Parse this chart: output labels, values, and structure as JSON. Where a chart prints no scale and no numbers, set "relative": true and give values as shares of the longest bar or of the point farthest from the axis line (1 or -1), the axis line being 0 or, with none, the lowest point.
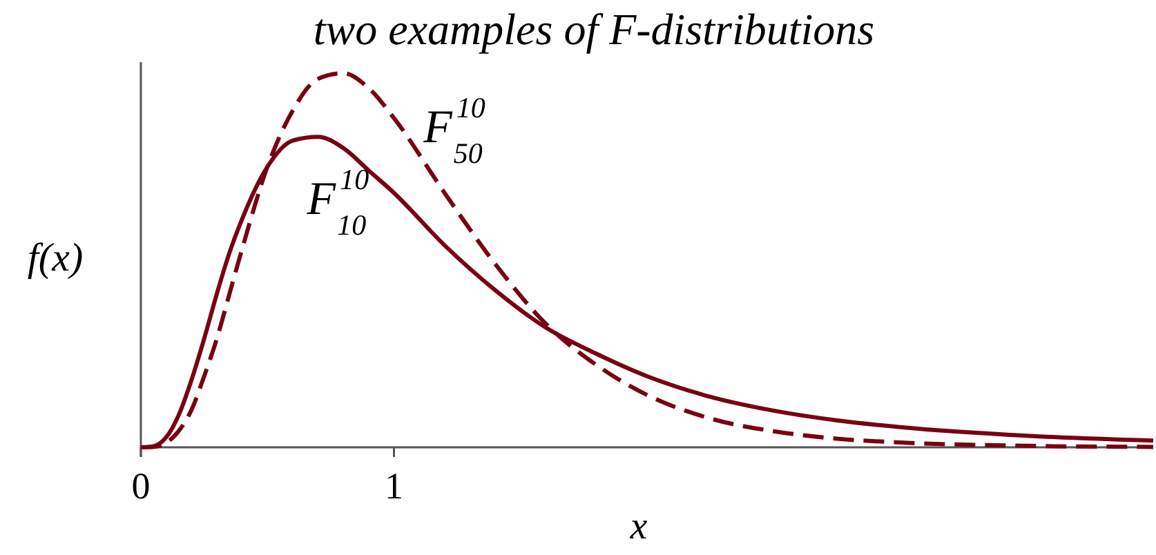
{
  "chart_data": {
    "type": "line",
    "title": "two examples of F-distributions",
    "xlabel": "x",
    "ylabel": "f(x)",
    "relative": true,
    "x": [
      0,
      0.05,
      0.1,
      0.15,
      0.2,
      0.25,
      0.3,
      0.35,
      0.4,
      0.5,
      0.6,
      0.7,
      0.8,
      0.9,
      1,
      1.2,
      1.4,
      1.6,
      1.8,
      2,
      2.25,
      2.5,
      2.75,
      3,
      3.5,
      4
    ],
    "xlim": [
      0,
      4
    ],
    "xticks": [
      0,
      1
    ],
    "series": [
      {
        "name": "F$^{10}$$_{10}$",
        "color": "#780012",
        "line_style": "solid",
        "values": [
          0,
          0.003,
          0.027,
          0.087,
          0.18,
          0.29,
          0.41,
          0.52,
          0.61,
          0.75,
          0.82,
          0.83,
          0.8,
          0.74,
          0.68,
          0.54,
          0.42,
          0.32,
          0.25,
          0.19,
          0.135,
          0.098,
          0.072,
          0.054,
          0.031,
          0.018
        ]
      },
      {
        "name": "F$^{10}$$_{50}$",
        "color": "#780012",
        "line_style": "dashed",
        "values": [
          0,
          0.001,
          0.012,
          0.044,
          0.1,
          0.19,
          0.29,
          0.41,
          0.53,
          0.75,
          0.9,
          0.985,
          1,
          0.96,
          0.88,
          0.68,
          0.49,
          0.33,
          0.22,
          0.14,
          0.077,
          0.043,
          0.023,
          0.013,
          0.004,
          0.001
        ]
      }
    ]
  }
}
